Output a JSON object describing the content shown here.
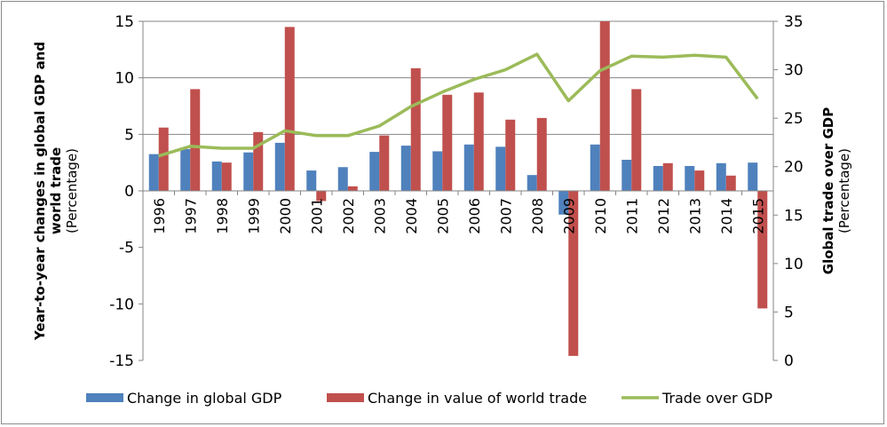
{
  "chart_data": {
    "type": "bar+line",
    "categories": [
      "1996",
      "1997",
      "1998",
      "1999",
      "2000",
      "2001",
      "2002",
      "2003",
      "2004",
      "2005",
      "2006",
      "2007",
      "2008",
      "2009",
      "2010",
      "2011",
      "2012",
      "2013",
      "2014",
      "2015"
    ],
    "series": [
      {
        "name": "Change in global GDP",
        "type": "bar",
        "axis": "left",
        "color": "#4f81bd",
        "values": [
          3.25,
          3.7,
          2.6,
          3.4,
          4.25,
          1.8,
          2.1,
          3.45,
          4.0,
          3.5,
          4.1,
          3.9,
          1.4,
          -2.1,
          4.1,
          2.75,
          2.2,
          2.2,
          2.45,
          2.5
        ]
      },
      {
        "name": "Change in value of world trade",
        "type": "bar",
        "axis": "left",
        "color": "#c0504d",
        "values": [
          5.6,
          9.0,
          2.5,
          5.2,
          14.5,
          -0.9,
          0.4,
          4.9,
          10.85,
          8.5,
          8.7,
          6.3,
          6.45,
          -14.6,
          15.0,
          9.0,
          2.45,
          1.8,
          1.35,
          -10.4
        ]
      },
      {
        "name": "Trade over GDP",
        "type": "line",
        "axis": "right",
        "color": "#9bbb59",
        "values": [
          21.1,
          22.1,
          21.9,
          21.9,
          23.7,
          23.2,
          23.2,
          24.2,
          26.2,
          27.7,
          29.0,
          30.0,
          31.6,
          26.8,
          29.9,
          31.4,
          31.3,
          31.5,
          31.3,
          27.0
        ]
      }
    ],
    "ylabel": "Year-to-year changes in global GDP and world trade",
    "ylabel_unit": "(Percentage)",
    "y2label": "Global trade over GDP",
    "y2label_unit": "(Percentage)",
    "ylim": [
      -15,
      15
    ],
    "y2lim": [
      0,
      35
    ],
    "yticks": [
      "15",
      "10",
      "5",
      "0",
      "-5",
      "-10",
      "-15"
    ],
    "y2ticks": [
      "35",
      "30",
      "25",
      "20",
      "15",
      "10",
      "5",
      "0"
    ],
    "grid": "horizontal, 5 to 15",
    "legend": "bottom"
  }
}
